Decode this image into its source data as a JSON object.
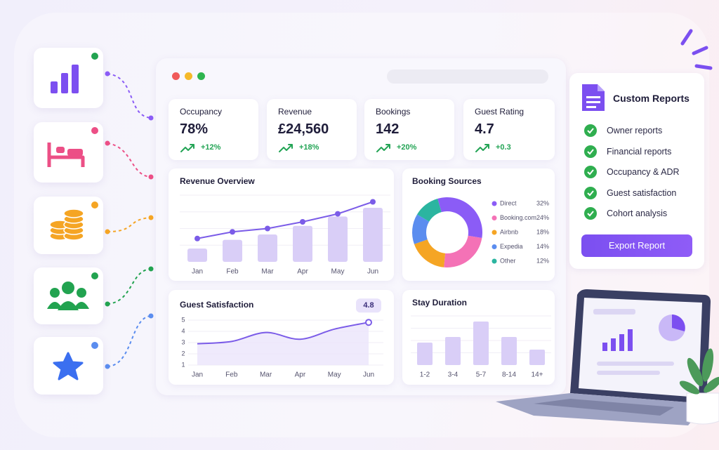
{
  "kpis": [
    {
      "label": "Occupancy",
      "value": "78%",
      "change": "+12%"
    },
    {
      "label": "Revenue",
      "value": "£24,560",
      "change": "+18%"
    },
    {
      "label": "Bookings",
      "value": "142",
      "change": "+20%"
    },
    {
      "label": "Guest Rating",
      "value": "4.7",
      "change": "+0.3"
    }
  ],
  "chart_data": [
    {
      "type": "combo",
      "title": "Revenue Overview",
      "categories": [
        "Jan",
        "Feb",
        "Mar",
        "Apr",
        "May",
        "Jun"
      ],
      "ylim": [
        0,
        100
      ],
      "series": [
        {
          "type": "bar",
          "color": "#d9cef7",
          "values": [
            20,
            33,
            41,
            54,
            68,
            81
          ]
        },
        {
          "type": "line",
          "color": "#7b5ce8",
          "values": [
            35,
            45,
            50,
            60,
            72,
            90
          ]
        }
      ]
    },
    {
      "type": "donut",
      "title": "Booking Sources",
      "categories": [
        "Direct",
        "Booking.com",
        "Airbnb",
        "Expedia",
        "Other"
      ],
      "values": [
        32,
        24,
        18,
        14,
        12
      ],
      "value_labels": [
        "32%",
        "24%",
        "18%",
        "14%",
        "12%"
      ],
      "colors": [
        "#8b5cf6",
        "#f472b6",
        "#f5a524",
        "#5b8def",
        "#2bb5a0"
      ]
    },
    {
      "type": "line",
      "title": "Guest Satisfaction",
      "categories": [
        "Jan",
        "Feb",
        "Mar",
        "Apr",
        "May",
        "Jun"
      ],
      "values": [
        2.9,
        3.1,
        3.9,
        3.3,
        4.2,
        4.8
      ],
      "ylim": [
        1,
        5
      ],
      "yticks": [
        1,
        2,
        3,
        4,
        5
      ],
      "grid": true,
      "color": "#7b5ce8"
    },
    {
      "type": "bar",
      "title": "Stay Duration",
      "categories": [
        "1-2",
        "3-4",
        "5-7",
        "8-14",
        "14+"
      ],
      "values": [
        32,
        40,
        62,
        40,
        22
      ],
      "ylim": [
        0,
        70
      ],
      "color": "#d9cef7"
    }
  ],
  "reports": {
    "title": "Custom Reports",
    "items": [
      "Owner reports",
      "Financial reports",
      "Occupancy & ADR",
      "Guest satisfaction",
      "Cohort analysis"
    ],
    "button": "Export Report"
  }
}
